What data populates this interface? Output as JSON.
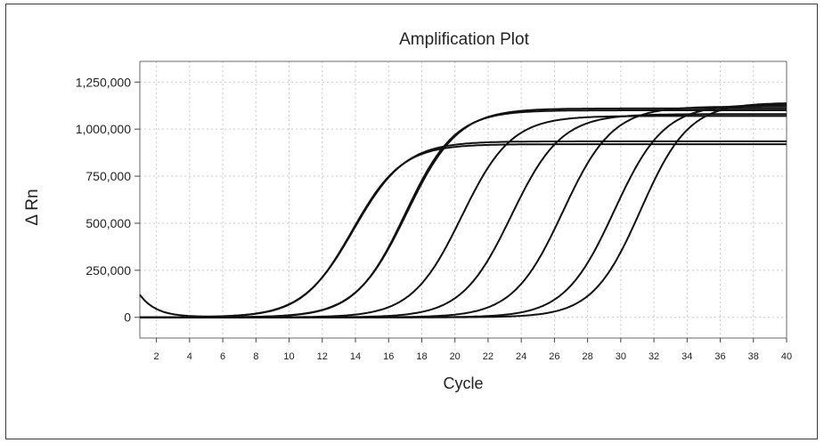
{
  "chart_data": {
    "type": "line",
    "title": "Amplification Plot",
    "xlabel": "Cycle",
    "ylabel": "Δ Rn",
    "xlim": [
      1,
      40
    ],
    "ylim": [
      -110000,
      1360000
    ],
    "x_ticks": [
      2,
      4,
      6,
      8,
      10,
      12,
      14,
      16,
      18,
      20,
      22,
      24,
      26,
      28,
      30,
      32,
      34,
      36,
      38,
      40
    ],
    "x_tick_labels": [
      "2",
      "4",
      "6",
      "8",
      "10",
      "12",
      "14",
      "16",
      "18",
      "20",
      "22",
      "24",
      "26",
      "28",
      "30",
      "32",
      "34",
      "36",
      "38",
      "40"
    ],
    "y_ticks": [
      0,
      250000,
      500000,
      750000,
      1000000,
      1250000
    ],
    "y_tick_labels": [
      "0",
      "250,000",
      "500,000",
      "750,000",
      "1,000,000",
      "1,250,000"
    ],
    "grid": true,
    "series": [
      {
        "curve_params": {
          "plateau": 920000,
          "midpoint": 13.8,
          "slope": 1.5,
          "drift": -150,
          "start": 120000
        }
      },
      {
        "curve_params": {
          "plateau": 935000,
          "midpoint": 13.9,
          "slope": 1.55,
          "drift": -250,
          "start": 0
        }
      },
      {
        "curve_params": {
          "plateau": 1100000,
          "midpoint": 17.0,
          "slope": 1.5,
          "drift": 0,
          "start": 0
        }
      },
      {
        "curve_params": {
          "plateau": 1110000,
          "midpoint": 17.1,
          "slope": 1.55,
          "drift": 0,
          "start": 0
        }
      },
      {
        "curve_params": {
          "plateau": 1070000,
          "midpoint": 20.4,
          "slope": 1.5,
          "drift": 0,
          "start": 0
        }
      },
      {
        "curve_params": {
          "plateau": 1080000,
          "midpoint": 23.4,
          "slope": 1.5,
          "drift": 0,
          "start": 0
        }
      },
      {
        "curve_params": {
          "plateau": 1120000,
          "midpoint": 26.5,
          "slope": 1.5,
          "drift": 0,
          "start": 0
        }
      },
      {
        "curve_params": {
          "plateau": 1130000,
          "midpoint": 29.6,
          "slope": 1.5,
          "drift": 0,
          "start": 0
        }
      },
      {
        "curve_params": {
          "plateau": 1140000,
          "midpoint": 31.2,
          "slope": 1.45,
          "drift": 0,
          "start": 0
        }
      }
    ]
  }
}
